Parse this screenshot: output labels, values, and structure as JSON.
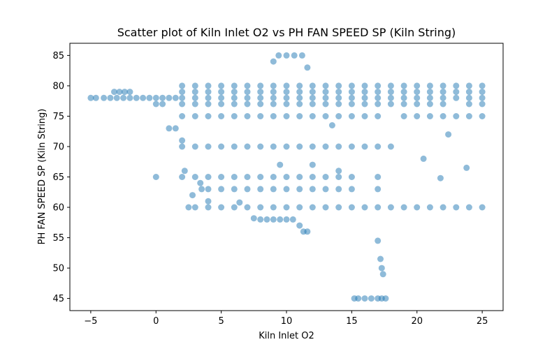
{
  "chart_data": {
    "type": "scatter",
    "title": "Scatter plot of Kiln Inlet O2 vs PH FAN SPEED SP  (Kiln String)",
    "xlabel": "Kiln Inlet O2",
    "ylabel": "PH FAN SPEED SP  (Kiln String)",
    "xlim": [
      -6.6,
      26.6
    ],
    "ylim": [
      43.0,
      87.0
    ],
    "xticks": [
      -5,
      0,
      5,
      10,
      15,
      20,
      25
    ],
    "yticks": [
      45,
      50,
      55,
      60,
      65,
      70,
      75,
      80,
      85
    ],
    "grid": false,
    "legend": "none",
    "marker_color": "#1f77b4",
    "marker_alpha": 0.5,
    "series": [
      {
        "x": [
          -5.0,
          -4.6,
          9.0,
          9.4,
          10.0,
          10.6,
          11.2,
          11.6,
          -4.0,
          -3.5,
          -3.0,
          -2.5,
          -2.0,
          -1.5,
          -1.0,
          -0.5,
          0.0,
          0.5,
          1.0,
          1.5,
          -3.2,
          -2.8,
          -2.4,
          -2.0,
          0.0,
          0.5,
          2.0,
          3.0,
          4.0,
          5.0,
          6.0,
          7.0,
          8.0,
          9.0,
          10.0,
          11.0,
          12.0,
          13.0,
          14.0,
          15.0,
          16.0,
          17.0,
          18.0,
          19.0,
          20.0,
          21.0,
          22.0,
          23.0,
          24.0,
          25.0,
          2.0,
          3.0,
          4.0,
          5.0,
          6.0,
          7.0,
          8.0,
          9.0,
          10.0,
          11.0,
          12.0,
          13.0,
          14.0,
          15.0,
          16.0,
          17.0,
          18.0,
          19.0,
          20.0,
          21.0,
          22.0,
          23.0,
          24.0,
          25.0,
          2.0,
          3.0,
          4.0,
          5.0,
          6.0,
          7.0,
          8.0,
          9.0,
          10.0,
          11.0,
          12.0,
          13.0,
          14.0,
          15.0,
          16.0,
          17.0,
          18.0,
          19.0,
          20.0,
          21.0,
          22.0,
          23.0,
          24.0,
          25.0,
          2.0,
          3.0,
          4.0,
          5.0,
          6.0,
          7.0,
          8.0,
          9.0,
          10.0,
          11.0,
          12.0,
          13.0,
          14.0,
          15.0,
          16.0,
          17.0,
          18.0,
          19.0,
          20.0,
          21.0,
          22.0,
          24.0,
          25.0,
          2.0,
          3.0,
          4.0,
          5.0,
          6.0,
          7.0,
          8.0,
          9.0,
          10.0,
          11.0,
          12.0,
          13.0,
          14.0,
          15.0,
          16.0,
          17.0,
          19.0,
          20.0,
          21.0,
          22.0,
          23.0,
          24.0,
          25.0,
          2.0,
          3.0,
          4.0,
          5.0,
          6.0,
          7.0,
          8.0,
          9.0,
          10.0,
          11.0,
          12.0,
          13.0,
          14.0,
          15.0,
          16.0,
          17.0,
          18.0,
          2.0,
          3.0,
          4.0,
          5.0,
          6.0,
          7.0,
          8.0,
          9.0,
          10.0,
          11.0,
          12.0,
          13.0,
          14.0,
          15.0,
          17.0,
          3.5,
          4.0,
          5.0,
          6.0,
          7.0,
          8.0,
          9.0,
          10.0,
          11.0,
          12.0,
          13.0,
          14.0,
          15.0,
          17.0,
          2.5,
          3.0,
          4.0,
          5.0,
          6.0,
          7.0,
          8.0,
          9.0,
          10.0,
          11.0,
          12.0,
          13.0,
          14.0,
          15.0,
          16.0,
          17.0,
          18.0,
          19.0,
          20.0,
          21.0,
          22.0,
          23.0,
          24.0,
          25.0,
          7.5,
          8.0,
          8.5,
          9.0,
          9.5,
          10.0,
          10.5,
          11.0,
          11.3,
          11.6,
          17.0,
          17.2,
          17.3,
          17.4,
          15.2,
          15.5,
          16.0,
          16.5,
          17.0,
          17.3,
          17.6,
          0.0,
          1.0,
          1.5,
          2.0,
          2.2,
          2.8,
          3.4,
          4.0,
          6.4,
          9.5,
          12.0,
          13.5,
          14.0,
          20.5,
          21.8,
          22.4,
          23.8
        ],
        "y": [
          78.0,
          78.0,
          84.0,
          85.0,
          85.0,
          85.0,
          85.0,
          83.0,
          78.0,
          78.0,
          78.0,
          78.0,
          78.0,
          78.0,
          78.0,
          78.0,
          78.0,
          78.0,
          78.0,
          78.0,
          79.0,
          79.0,
          79.0,
          79.0,
          77.0,
          77.0,
          80.0,
          80.0,
          80.0,
          80.0,
          80.0,
          80.0,
          80.0,
          80.0,
          80.0,
          80.0,
          80.0,
          80.0,
          80.0,
          80.0,
          80.0,
          80.0,
          80.0,
          80.0,
          80.0,
          80.0,
          80.0,
          80.0,
          80.0,
          80.0,
          79.0,
          79.0,
          79.0,
          79.0,
          79.0,
          79.0,
          79.0,
          79.0,
          79.0,
          79.0,
          79.0,
          79.0,
          79.0,
          79.0,
          79.0,
          79.0,
          79.0,
          79.0,
          79.0,
          79.0,
          79.0,
          79.0,
          79.0,
          79.0,
          78.0,
          78.0,
          78.0,
          78.0,
          78.0,
          78.0,
          78.0,
          78.0,
          78.0,
          78.0,
          78.0,
          78.0,
          78.0,
          78.0,
          78.0,
          78.0,
          78.0,
          78.0,
          78.0,
          78.0,
          78.0,
          78.0,
          78.0,
          78.0,
          77.0,
          77.0,
          77.0,
          77.0,
          77.0,
          77.0,
          77.0,
          77.0,
          77.0,
          77.0,
          77.0,
          77.0,
          77.0,
          77.0,
          77.0,
          77.0,
          77.0,
          77.0,
          77.0,
          77.0,
          77.0,
          77.0,
          77.0,
          75.0,
          75.0,
          75.0,
          75.0,
          75.0,
          75.0,
          75.0,
          75.0,
          75.0,
          75.0,
          75.0,
          75.0,
          75.0,
          75.0,
          75.0,
          75.0,
          75.0,
          75.0,
          75.0,
          75.0,
          75.0,
          75.0,
          75.0,
          70.0,
          70.0,
          70.0,
          70.0,
          70.0,
          70.0,
          70.0,
          70.0,
          70.0,
          70.0,
          70.0,
          70.0,
          70.0,
          70.0,
          70.0,
          70.0,
          70.0,
          65.0,
          65.0,
          65.0,
          65.0,
          65.0,
          65.0,
          65.0,
          65.0,
          65.0,
          65.0,
          65.0,
          65.0,
          65.0,
          65.0,
          65.0,
          63.0,
          63.0,
          63.0,
          63.0,
          63.0,
          63.0,
          63.0,
          63.0,
          63.0,
          63.0,
          63.0,
          63.0,
          63.0,
          63.0,
          60.0,
          60.0,
          60.0,
          60.0,
          60.0,
          60.0,
          60.0,
          60.0,
          60.0,
          60.0,
          60.0,
          60.0,
          60.0,
          60.0,
          60.0,
          60.0,
          60.0,
          60.0,
          60.0,
          60.0,
          60.0,
          60.0,
          60.0,
          60.0,
          58.2,
          58.0,
          58.0,
          58.0,
          58.0,
          58.0,
          58.0,
          57.0,
          56.0,
          56.0,
          54.5,
          51.5,
          50.0,
          49.0,
          45.0,
          45.0,
          45.0,
          45.0,
          45.0,
          45.0,
          45.0,
          65.0,
          73.0,
          73.0,
          71.0,
          66.0,
          62.0,
          64.0,
          61.0,
          60.8,
          67.0,
          67.0,
          73.5,
          66.0,
          68.0,
          64.8,
          72.0,
          66.5
        ]
      }
    ]
  }
}
